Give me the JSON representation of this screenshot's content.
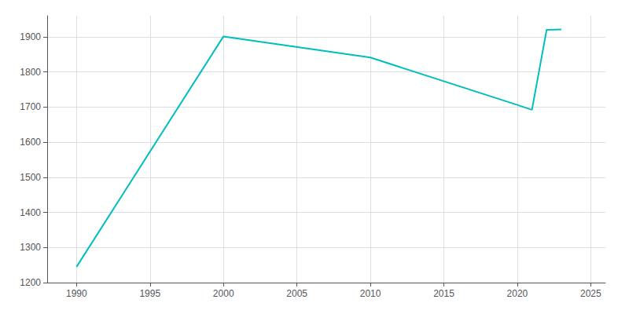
{
  "chart_data": {
    "type": "line",
    "x": [
      1990,
      2000,
      2010,
      2020,
      2021,
      2022,
      2023
    ],
    "values": [
      1245,
      1901,
      1841,
      1706,
      1692,
      1920,
      1921
    ],
    "color": "#00BEBE",
    "xlim": [
      1988,
      2026
    ],
    "ylim": [
      1200,
      1960
    ],
    "xticks": [
      1990,
      1995,
      2000,
      2005,
      2010,
      2015,
      2020,
      2025
    ],
    "yticks": [
      1200,
      1300,
      1400,
      1500,
      1600,
      1700,
      1800,
      1900
    ],
    "grid": true
  }
}
